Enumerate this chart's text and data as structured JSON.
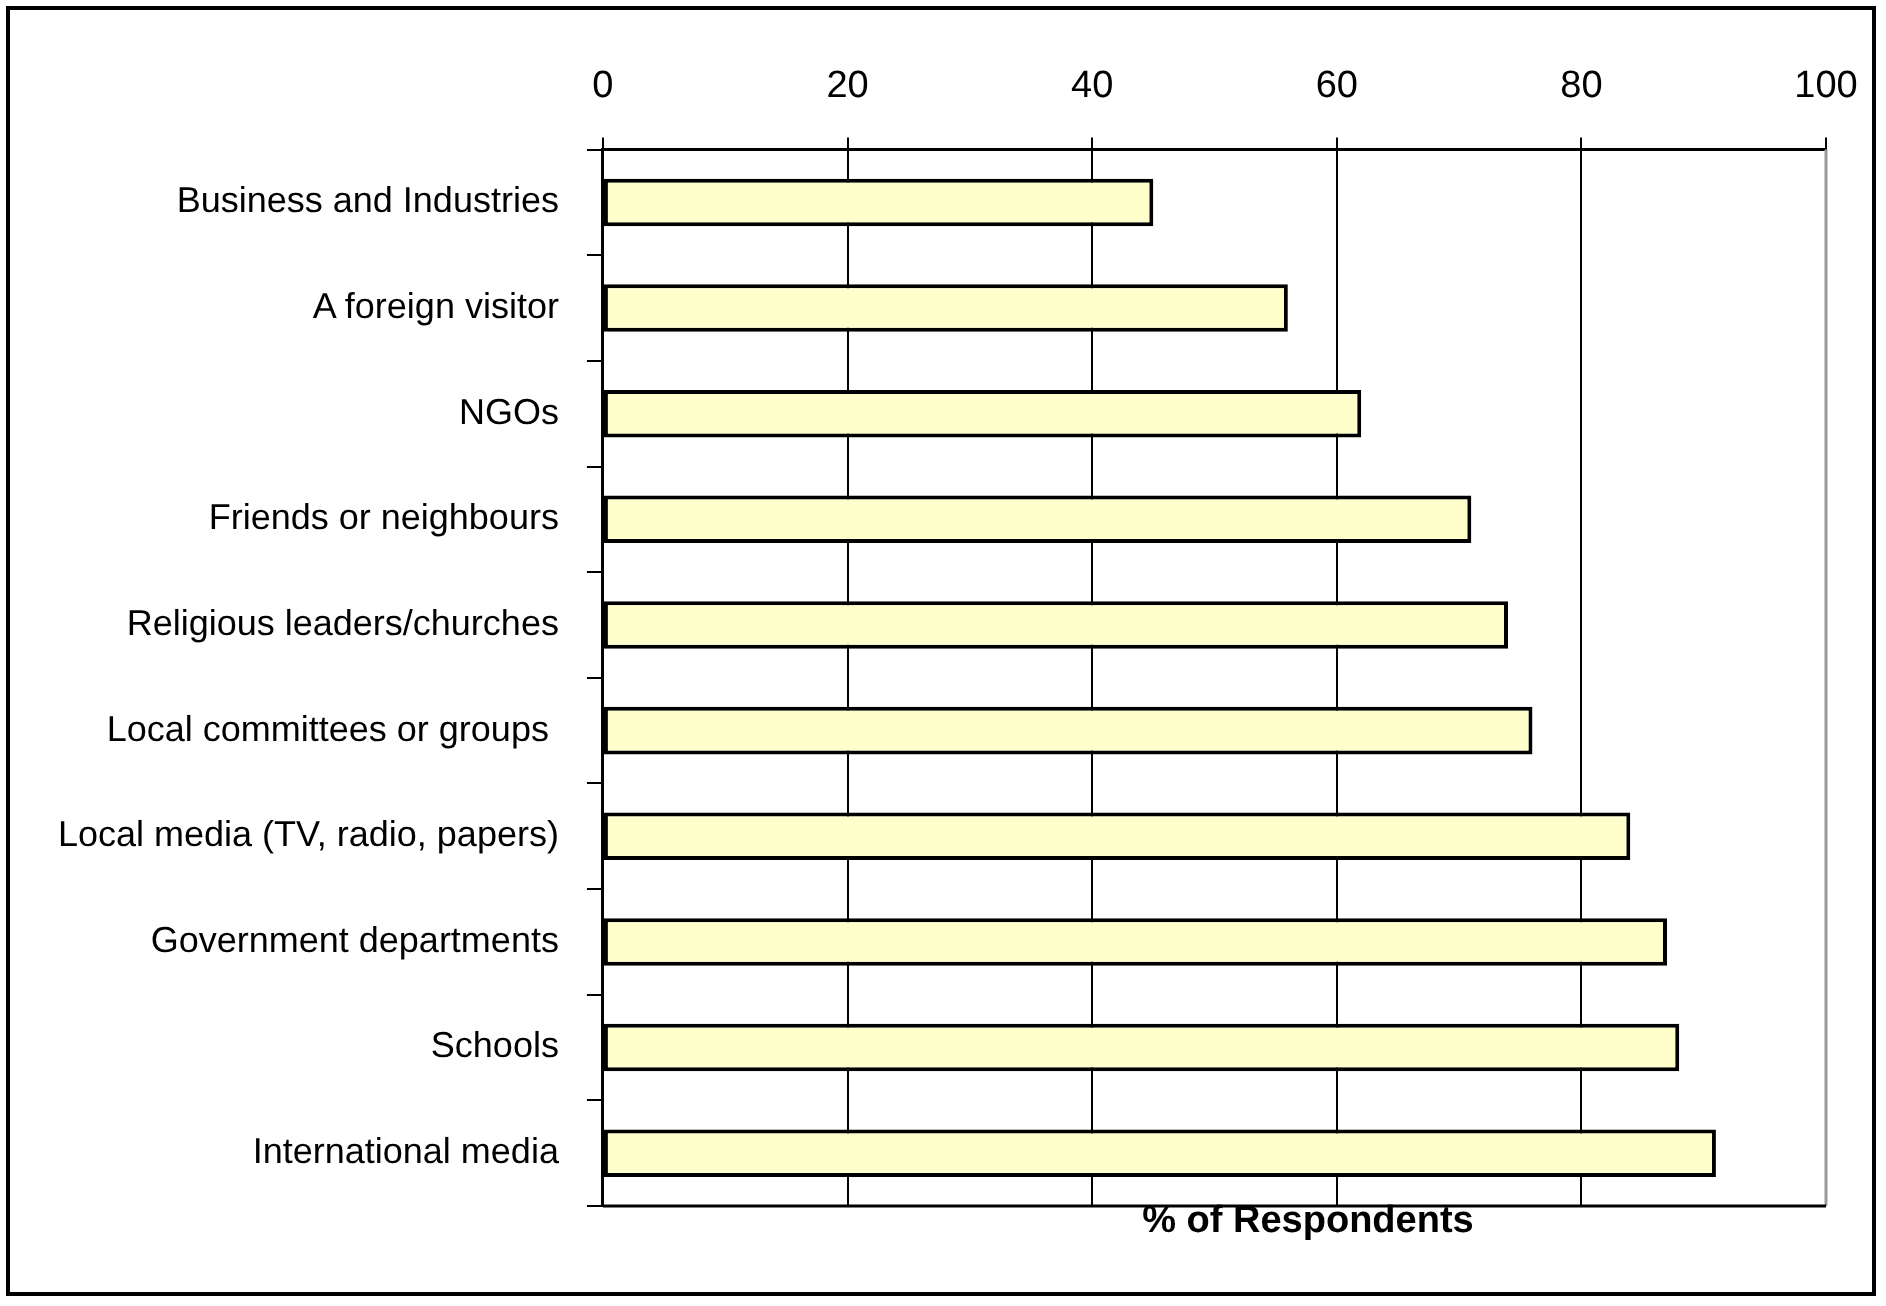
{
  "chart_data": {
    "type": "bar",
    "orientation": "horizontal",
    "xlabel": "% of Respondents",
    "categories": [
      "Business and Industries",
      "A foreign visitor",
      "NGOs",
      "Friends or neighbours",
      "Religious leaders/churches",
      "Local committees or groups ",
      "Local media (TV, radio, papers)",
      "Government departments",
      "Schools",
      "International media"
    ],
    "values": [
      45,
      56,
      62,
      71,
      74,
      76,
      84,
      87,
      88,
      91
    ],
    "color": "#ffffcc",
    "xlim": [
      0,
      100
    ],
    "xticks": [
      0,
      20,
      40,
      60,
      80,
      100
    ],
    "grid": "x",
    "legend": false
  }
}
